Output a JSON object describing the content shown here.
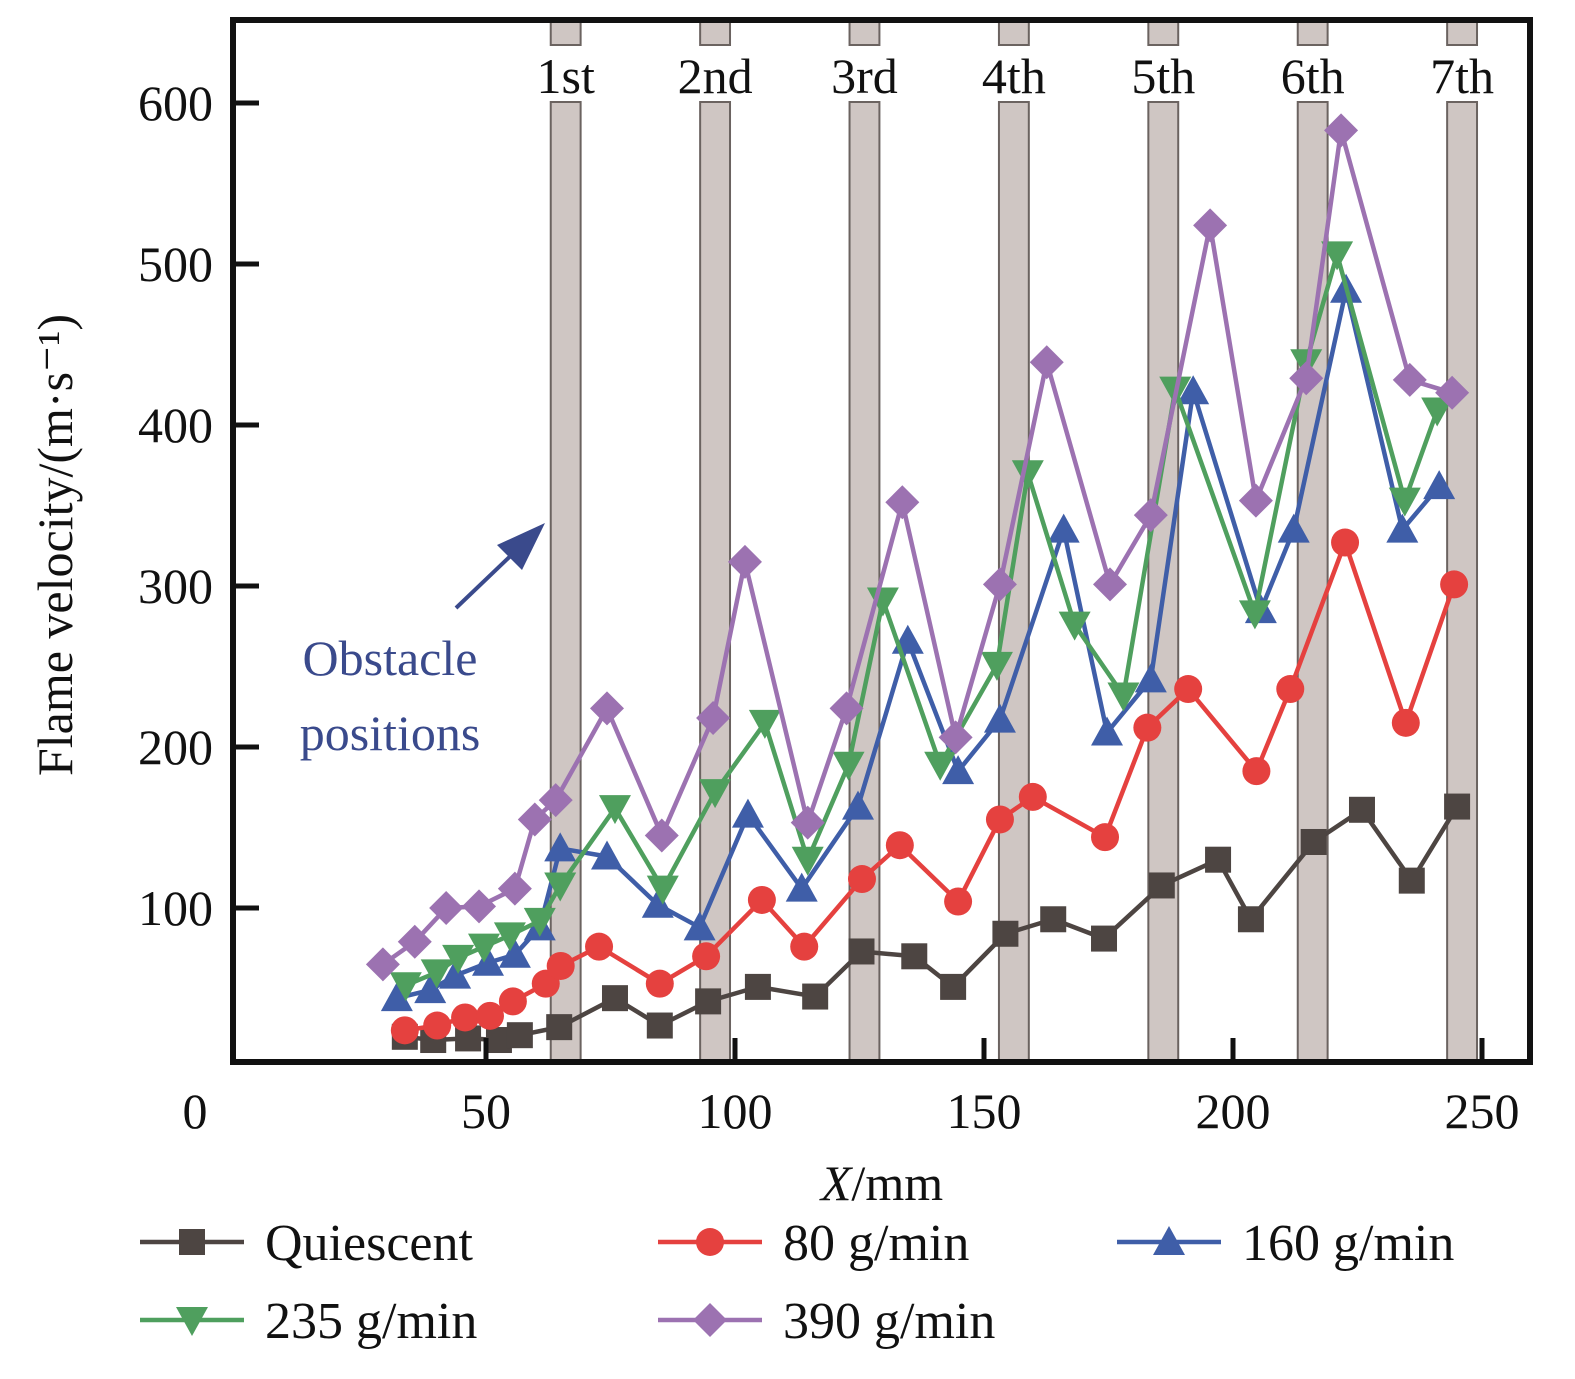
{
  "chart_data": {
    "type": "line",
    "title": "",
    "xlabel": "X/mm",
    "xlabel_italic_part": "X",
    "xlabel_rest": "/mm",
    "ylabel": "Flame velocity/(m·s⁻¹)",
    "xlim": [
      0,
      260
    ],
    "ylim": [
      4,
      650
    ],
    "x_ticks": [
      0,
      50,
      100,
      150,
      200,
      250
    ],
    "x_tick_labels": [
      "0",
      "50",
      "100",
      "150",
      "200",
      "250"
    ],
    "y_ticks": [
      100,
      200,
      300,
      400,
      500,
      600
    ],
    "y_tick_labels": [
      "100",
      "200",
      "300",
      "400",
      "500",
      "600"
    ],
    "grid": false,
    "legend_position": "bottom",
    "obstacles": [
      {
        "label": "1st",
        "x_start": 63,
        "x_end": 69
      },
      {
        "label": "2nd",
        "x_start": 93,
        "x_end": 99
      },
      {
        "label": "3rd",
        "x_start": 123,
        "x_end": 129
      },
      {
        "label": "4th",
        "x_start": 153,
        "x_end": 159
      },
      {
        "label": "5th",
        "x_start": 183,
        "x_end": 189
      },
      {
        "label": "6th",
        "x_start": 213,
        "x_end": 219
      },
      {
        "label": "7th",
        "x_start": 243,
        "x_end": 249
      }
    ],
    "annotation": {
      "lines": [
        "Obstacle",
        "positions"
      ],
      "arrow_target": "1st obstacle"
    },
    "series": [
      {
        "name": "Quiescent",
        "color": "#4d4542",
        "marker": "square",
        "x": [
          33.7,
          39.4,
          46.4,
          52.6,
          56.8,
          64.7,
          75.9,
          84.9,
          94.6,
          104.6,
          116.1,
          125.4,
          136.0,
          143.8,
          154.3,
          163.9,
          174.1,
          185.7,
          197.0,
          203.6,
          216.2,
          225.9,
          235.9,
          245.0
        ],
        "y": [
          20,
          18,
          19,
          18,
          21,
          26,
          44,
          27,
          42,
          51,
          45,
          73,
          70,
          51,
          84,
          93,
          81,
          114,
          130,
          93,
          141,
          161,
          117,
          163
        ]
      },
      {
        "name": "80 g/min",
        "color": "#e5413f",
        "marker": "circle",
        "x": [
          33.7,
          40.2,
          45.8,
          50.8,
          55.4,
          62.0,
          65.0,
          72.7,
          84.9,
          94.2,
          105.4,
          113.9,
          125.5,
          133.1,
          144.8,
          153.2,
          159.8,
          174.3,
          182.8,
          191.0,
          204.7,
          211.5,
          222.5,
          234.7,
          244.4
        ],
        "y": [
          24,
          27,
          32,
          33,
          42,
          53,
          64,
          76,
          53,
          70,
          105,
          76,
          118,
          139,
          104,
          155,
          169,
          144,
          212,
          236,
          185,
          236,
          327,
          215,
          301
        ]
      },
      {
        "name": "160 g/min",
        "color": "#3f5ea8",
        "marker": "triangle-up",
        "x": [
          32.1,
          38.8,
          43.8,
          50.4,
          55.8,
          60.8,
          64.9,
          74.3,
          84.5,
          92.9,
          102.6,
          113.4,
          124.7,
          134.7,
          144.8,
          153.2,
          166.0,
          174.7,
          183.5,
          192.0,
          205.6,
          212.2,
          222.7,
          234.0,
          241.4
        ],
        "y": [
          44,
          49,
          58,
          66,
          71,
          88,
          137,
          132,
          102,
          88,
          158,
          112,
          163,
          266,
          185,
          217,
          335,
          209,
          242,
          421,
          285,
          335,
          484,
          335,
          362
        ]
      },
      {
        "name": "235 g/min",
        "color": "#4f9f5e",
        "marker": "triangle-down",
        "x": [
          33.9,
          40.1,
          44.4,
          49.6,
          54.8,
          60.8,
          64.9,
          75.9,
          85.5,
          96.0,
          106.0,
          114.6,
          122.8,
          129.7,
          141.2,
          152.6,
          158.8,
          168.2,
          178.0,
          188.4,
          204.4,
          214.7,
          220.9,
          234.5,
          241.0
        ],
        "y": [
          52,
          60,
          69,
          76,
          83,
          92,
          114,
          162,
          112,
          172,
          215,
          130,
          189,
          291,
          189,
          251,
          370,
          276,
          232,
          422,
          283,
          439,
          506,
          353,
          409
        ]
      },
      {
        "name": "390 g/min",
        "color": "#9c72b1",
        "marker": "diamond",
        "x": [
          29.3,
          35.7,
          42.0,
          48.6,
          55.8,
          59.8,
          64.0,
          74.3,
          85.3,
          95.6,
          102.0,
          114.6,
          122.4,
          133.6,
          144.3,
          153.2,
          162.6,
          175.3,
          183.5,
          195.4,
          204.6,
          214.7,
          221.7,
          235.5,
          244.0
        ],
        "y": [
          65,
          79,
          100,
          101,
          112,
          155,
          167,
          224,
          145,
          218,
          315,
          153,
          224,
          352,
          206,
          301,
          439,
          301,
          344,
          524,
          353,
          429,
          583,
          428,
          420
        ]
      }
    ]
  }
}
